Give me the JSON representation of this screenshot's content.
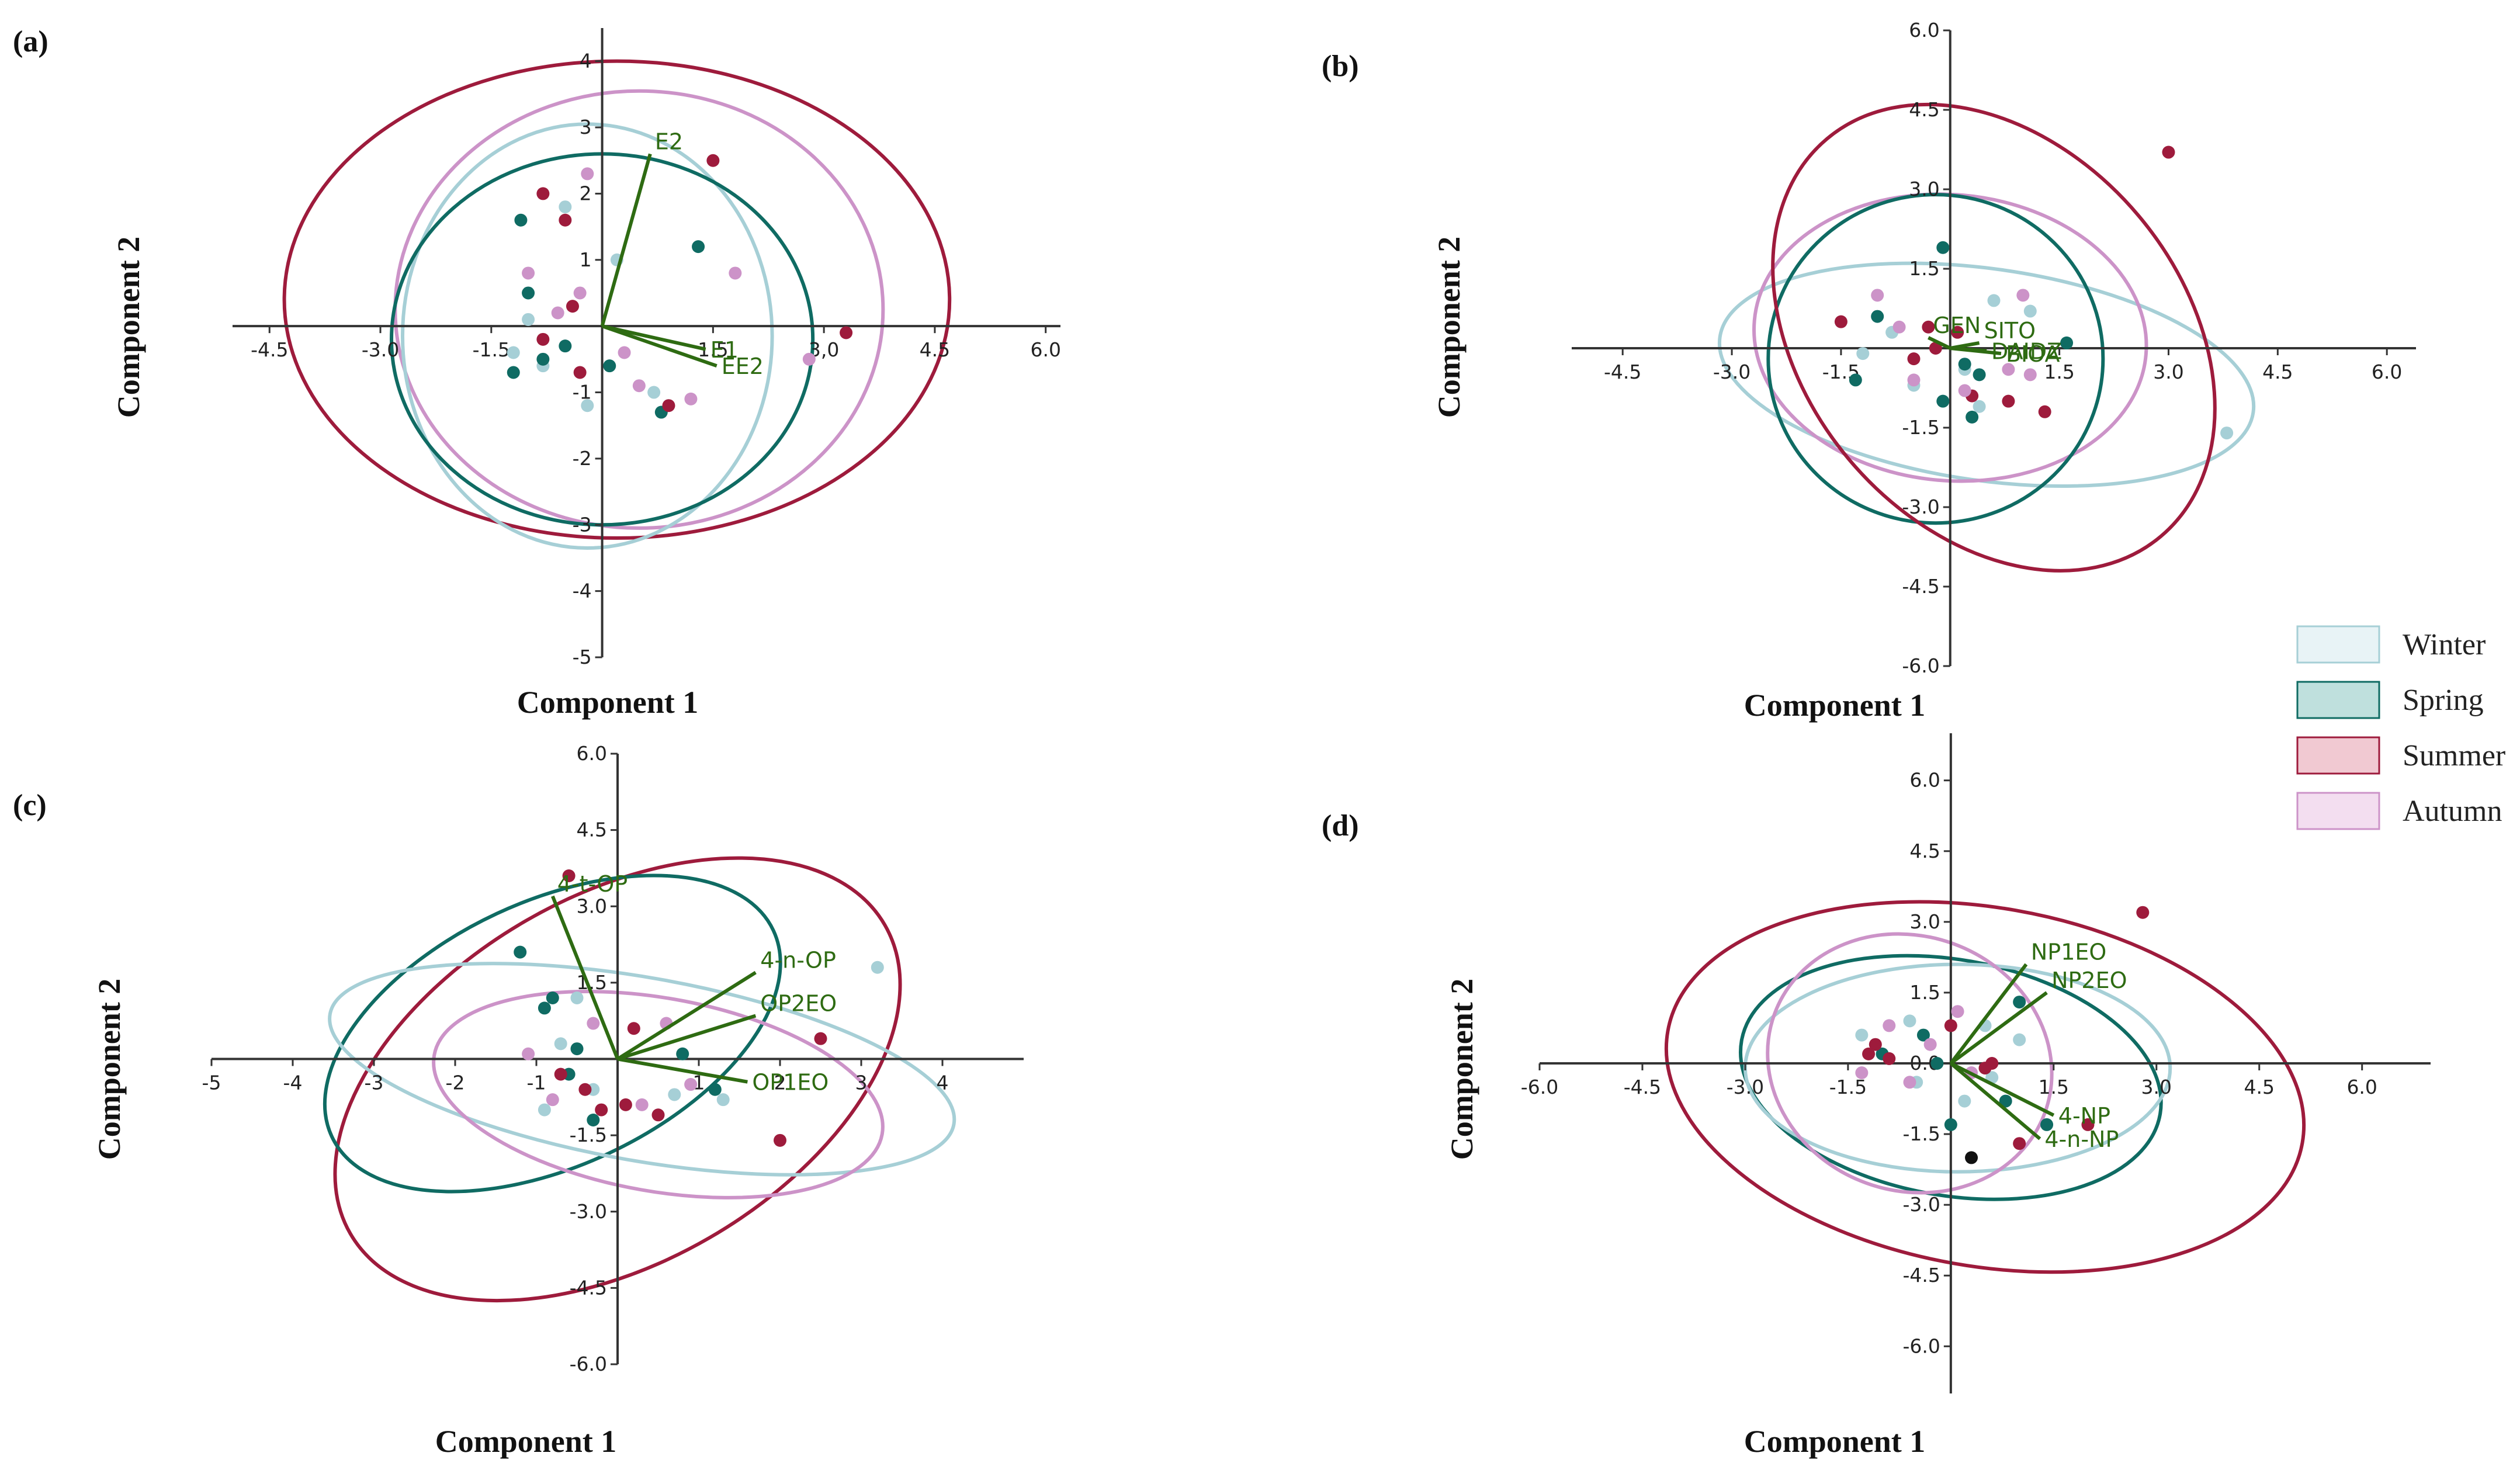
{
  "colors": {
    "Winter": "#a6cfd6",
    "Spring": "#0f6b63",
    "Summer": "#9e1b3c",
    "Autumn": "#cc93c8",
    "vector": "#2e6b12",
    "axis": "#333333",
    "legend_fill": {
      "Winter": "#e8f3f6",
      "Spring": "#bfe0dd",
      "Summer": "#f1c9d2",
      "Autumn": "#f3def0"
    }
  },
  "legend": {
    "placement": "right-middle",
    "items": [
      {
        "key": "Winter",
        "label": "Winter"
      },
      {
        "key": "Spring",
        "label": "Spring"
      },
      {
        "key": "Summer",
        "label": "Summer"
      },
      {
        "key": "Autumn",
        "label": "Autumn"
      }
    ]
  },
  "chart_data": [
    {
      "panel": "(a)",
      "type": "scatter",
      "xlabel": "Component 1",
      "ylabel": "Component 2",
      "xlim": [
        -5,
        6.2
      ],
      "ylim": [
        -5,
        4.5
      ],
      "xticks": [
        -4.5,
        -3.0,
        -1.5,
        1.5,
        3.0,
        4.5,
        6.0
      ],
      "xtick_labels": [
        "-4.5",
        "-3.0",
        "-1.5",
        "1.5",
        "3,0",
        "4.5",
        "6.0"
      ],
      "yticks": [
        -5,
        -4,
        -3,
        -2,
        -1,
        1,
        2,
        3,
        4
      ],
      "ytick_labels": [
        "-5",
        "-4",
        "-3",
        "-2",
        "-1",
        "1",
        "2",
        "3",
        "4"
      ],
      "vectors": [
        {
          "label": "E2",
          "x": 0.65,
          "y": 2.6
        },
        {
          "label": "E1",
          "x": 1.4,
          "y": -0.35
        },
        {
          "label": "EE2",
          "x": 1.55,
          "y": -0.6
        }
      ],
      "ellipses": [
        {
          "season": "Summer",
          "cx": 0.2,
          "cy": 0.4,
          "rx": 4.5,
          "ry": 3.6,
          "angle": 0
        },
        {
          "season": "Autumn",
          "cx": 0.5,
          "cy": 0.25,
          "rx": 3.3,
          "ry": 3.3,
          "angle": 0
        },
        {
          "season": "Winter",
          "cx": -0.2,
          "cy": -0.15,
          "rx": 2.5,
          "ry": 3.2,
          "angle": 0
        },
        {
          "season": "Spring",
          "cx": 0.0,
          "cy": -0.2,
          "rx": 2.85,
          "ry": 2.8,
          "angle": 0
        }
      ],
      "points": {
        "Winter": [
          [
            -1.2,
            -0.4
          ],
          [
            -0.8,
            -0.6
          ],
          [
            -0.2,
            -1.2
          ],
          [
            -0.5,
            1.8
          ],
          [
            0.2,
            1.0
          ],
          [
            0.7,
            -1.0
          ],
          [
            -1.0,
            0.1
          ]
        ],
        "Spring": [
          [
            -1.1,
            1.6
          ],
          [
            -1.0,
            0.5
          ],
          [
            -1.2,
            -0.7
          ],
          [
            -0.5,
            -0.3
          ],
          [
            1.3,
            1.2
          ],
          [
            0.8,
            -1.3
          ],
          [
            -0.8,
            -0.5
          ],
          [
            0.1,
            -0.6
          ]
        ],
        "Summer": [
          [
            -0.8,
            2.0
          ],
          [
            -0.5,
            1.6
          ],
          [
            1.5,
            2.5
          ],
          [
            3.3,
            -0.1
          ],
          [
            -0.8,
            -0.2
          ],
          [
            -0.3,
            -0.7
          ],
          [
            -0.4,
            0.3
          ],
          [
            0.9,
            -1.2
          ]
        ],
        "Autumn": [
          [
            -0.2,
            2.3
          ],
          [
            -1.0,
            0.8
          ],
          [
            -0.3,
            0.5
          ],
          [
            1.8,
            0.8
          ],
          [
            2.8,
            -0.5
          ],
          [
            0.5,
            -0.9
          ],
          [
            1.2,
            -1.1
          ],
          [
            -0.6,
            0.2
          ],
          [
            0.3,
            -0.4
          ]
        ]
      }
    },
    {
      "panel": "(b)",
      "type": "scatter",
      "xlabel": "Component 1",
      "ylabel": "Component 2",
      "xlim": [
        -5.2,
        6.4
      ],
      "ylim": [
        -6.0,
        6.0
      ],
      "xticks": [
        -4.5,
        -3.0,
        -1.5,
        1.5,
        3.0,
        4.5,
        6.0
      ],
      "xtick_labels": [
        "-4.5",
        "-3.0",
        "-1.5",
        "1.5",
        "3.0",
        "4.5",
        "6.0"
      ],
      "yticks": [
        -6.0,
        -4.5,
        -3.0,
        -1.5,
        1.5,
        3.0,
        4.5,
        6.0
      ],
      "ytick_labels": [
        "-6.0",
        "-4.5",
        "-3.0",
        "-1.5",
        "1.5",
        "3.0",
        "4.5",
        "6.0"
      ],
      "vectors": [
        {
          "label": "GEN",
          "x": -0.3,
          "y": 0.2
        },
        {
          "label": "SITO",
          "x": 0.4,
          "y": 0.1
        },
        {
          "label": "DAIDZ",
          "x": 0.5,
          "y": -0.05
        },
        {
          "label": "BIOA",
          "x": 0.7,
          "y": -0.1
        }
      ],
      "ellipses": [
        {
          "season": "Winter",
          "cx": 0.5,
          "cy": -0.5,
          "rx": 3.7,
          "ry": 2.0,
          "angle": -8
        },
        {
          "season": "Autumn",
          "cx": 0.0,
          "cy": 0.2,
          "rx": 2.7,
          "ry": 2.7,
          "angle": -5
        },
        {
          "season": "Spring",
          "cx": -0.2,
          "cy": -0.2,
          "rx": 2.3,
          "ry": 3.1,
          "angle": 0
        },
        {
          "season": "Summer",
          "cx": 0.6,
          "cy": 0.2,
          "rx": 2.6,
          "ry": 4.9,
          "angle": 40
        }
      ],
      "points": {
        "Winter": [
          [
            0.6,
            0.9
          ],
          [
            1.1,
            0.7
          ],
          [
            -0.8,
            0.3
          ],
          [
            -0.5,
            -0.7
          ],
          [
            0.2,
            -0.4
          ],
          [
            3.8,
            -1.6
          ],
          [
            -1.2,
            -0.1
          ],
          [
            0.4,
            -1.1
          ]
        ],
        "Spring": [
          [
            -0.1,
            1.9
          ],
          [
            -1.0,
            0.6
          ],
          [
            -1.3,
            -0.6
          ],
          [
            0.2,
            -0.3
          ],
          [
            0.3,
            -1.3
          ],
          [
            1.6,
            0.1
          ],
          [
            -0.1,
            -1.0
          ],
          [
            0.4,
            -0.5
          ]
        ],
        "Summer": [
          [
            -1.5,
            0.5
          ],
          [
            -0.3,
            0.4
          ],
          [
            0.8,
            -1.0
          ],
          [
            1.3,
            -1.2
          ],
          [
            3.0,
            3.7
          ],
          [
            -0.5,
            -0.2
          ],
          [
            0.1,
            0.3
          ],
          [
            -0.2,
            0.0
          ],
          [
            0.3,
            -0.9
          ]
        ],
        "Autumn": [
          [
            -1.0,
            1.0
          ],
          [
            1.0,
            1.0
          ],
          [
            1.1,
            -0.5
          ],
          [
            -0.5,
            -0.6
          ],
          [
            0.8,
            -0.4
          ],
          [
            -0.7,
            0.4
          ],
          [
            0.2,
            -0.8
          ]
        ]
      }
    },
    {
      "panel": "(c)",
      "type": "scatter",
      "xlabel": "Component 1",
      "ylabel": "Component 2",
      "xlim": [
        -5,
        5
      ],
      "ylim": [
        -6.0,
        6.0
      ],
      "xticks": [
        -5,
        -4,
        -3,
        -2,
        -1,
        1,
        2,
        3,
        4
      ],
      "xtick_labels": [
        "-5",
        "-4",
        "-3",
        "-2",
        "-1",
        "1",
        "2",
        "3",
        "4"
      ],
      "yticks": [
        -6.0,
        -4.5,
        -3.0,
        -1.5,
        1.5,
        3.0,
        4.5,
        6.0
      ],
      "ytick_labels": [
        "-6.0",
        "-4.5",
        "-3.0",
        "-1.5",
        "1.5",
        "3.0",
        "4.5",
        "6.0"
      ],
      "vectors": [
        {
          "label": "4-t-OP",
          "x": -0.8,
          "y": 3.2
        },
        {
          "label": "4-n-OP",
          "x": 1.7,
          "y": 1.7
        },
        {
          "label": "OP2EO",
          "x": 1.7,
          "y": 0.85
        },
        {
          "label": "OP1EO",
          "x": 1.6,
          "y": -0.45
        }
      ],
      "ellipses": [
        {
          "season": "Summer",
          "cx": 0.0,
          "cy": -0.4,
          "rx": 3.8,
          "ry": 3.6,
          "angle": 30
        },
        {
          "season": "Spring",
          "cx": -0.8,
          "cy": 0.5,
          "rx": 3.0,
          "ry": 2.6,
          "angle": 25
        },
        {
          "season": "Winter",
          "cx": 0.3,
          "cy": -0.2,
          "rx": 3.9,
          "ry": 1.8,
          "angle": -10
        },
        {
          "season": "Autumn",
          "cx": 0.5,
          "cy": -0.7,
          "rx": 2.8,
          "ry": 1.9,
          "angle": -10
        }
      ],
      "points": {
        "Winter": [
          [
            -0.5,
            1.2
          ],
          [
            -0.7,
            0.3
          ],
          [
            3.2,
            1.8
          ],
          [
            -0.3,
            -0.6
          ],
          [
            0.7,
            -0.7
          ],
          [
            1.3,
            -0.8
          ],
          [
            -0.9,
            -1.0
          ]
        ],
        "Spring": [
          [
            -1.2,
            2.1
          ],
          [
            -0.8,
            1.2
          ],
          [
            -0.9,
            1.0
          ],
          [
            -0.5,
            0.2
          ],
          [
            0.8,
            0.1
          ],
          [
            1.2,
            -0.6
          ],
          [
            -0.6,
            -0.3
          ],
          [
            -0.3,
            -1.2
          ]
        ],
        "Summer": [
          [
            -0.6,
            3.6
          ],
          [
            0.2,
            0.6
          ],
          [
            2.5,
            0.4
          ],
          [
            2.0,
            -1.6
          ],
          [
            -0.4,
            -0.6
          ],
          [
            0.1,
            -0.9
          ],
          [
            -0.2,
            -1.0
          ],
          [
            0.5,
            -1.1
          ],
          [
            -0.7,
            -0.3
          ]
        ],
        "Autumn": [
          [
            -0.3,
            0.7
          ],
          [
            0.6,
            0.7
          ],
          [
            0.9,
            -0.5
          ],
          [
            -0.8,
            -0.8
          ],
          [
            0.3,
            -0.9
          ],
          [
            -1.1,
            0.1
          ]
        ]
      }
    },
    {
      "panel": "(d)",
      "type": "scatter",
      "xlabel": "Component 1",
      "ylabel": "Component 2",
      "xlim": [
        -6.0,
        7.0
      ],
      "ylim": [
        -7.0,
        7.0
      ],
      "xticks": [
        -6.0,
        -4.5,
        -3.0,
        -1.5,
        1.5,
        3.0,
        4.5,
        6.0
      ],
      "xtick_labels": [
        "-6.0",
        "-4.5",
        "-3.0",
        "-1.5",
        "1.5",
        "3.0",
        "4.5",
        "6.0"
      ],
      "yticks": [
        -6.0,
        -4.5,
        -3.0,
        -1.5,
        0.0,
        1.5,
        3.0,
        4.5,
        6.0
      ],
      "ytick_labels": [
        "-6.0",
        "-4.5",
        "-3.0",
        "-1.5",
        "0.0",
        "1.5",
        "3.0",
        "4.5",
        "6.0"
      ],
      "vectors": [
        {
          "label": "NP1EO",
          "x": 1.1,
          "y": 2.1
        },
        {
          "label": "NP2EO",
          "x": 1.4,
          "y": 1.5
        },
        {
          "label": "4-NP",
          "x": 1.5,
          "y": -1.1
        },
        {
          "label": "4-n-NP",
          "x": 1.3,
          "y": -1.6
        }
      ],
      "ellipses": [
        {
          "season": "Summer",
          "cx": 0.5,
          "cy": -0.5,
          "rx": 4.7,
          "ry": 3.8,
          "angle": -10
        },
        {
          "season": "Spring",
          "cx": 0.0,
          "cy": -0.3,
          "rx": 3.1,
          "ry": 2.5,
          "angle": -10
        },
        {
          "season": "Winter",
          "cx": 0.1,
          "cy": -0.1,
          "rx": 3.1,
          "ry": 2.2,
          "angle": 0
        },
        {
          "season": "Autumn",
          "cx": -0.6,
          "cy": 0.0,
          "rx": 2.1,
          "ry": 2.7,
          "angle": -20
        }
      ],
      "points": {
        "Winter": [
          [
            -1.3,
            0.6
          ],
          [
            -0.6,
            0.9
          ],
          [
            0.5,
            0.8
          ],
          [
            1.0,
            0.5
          ],
          [
            0.2,
            -0.8
          ],
          [
            -0.5,
            -0.4
          ],
          [
            0.6,
            -0.3
          ]
        ],
        "Spring": [
          [
            -1.0,
            0.2
          ],
          [
            -0.4,
            0.6
          ],
          [
            1.0,
            1.3
          ],
          [
            0.8,
            -0.8
          ],
          [
            0.0,
            -1.3
          ],
          [
            1.4,
            -1.3
          ],
          [
            -0.2,
            0.0
          ]
        ],
        "Summer": [
          [
            -1.1,
            0.4
          ],
          [
            0.0,
            0.8
          ],
          [
            2.8,
            3.2
          ],
          [
            2.0,
            -1.3
          ],
          [
            1.0,
            -1.7
          ],
          [
            -0.9,
            0.1
          ],
          [
            0.5,
            -0.1
          ],
          [
            -1.2,
            0.2
          ],
          [
            0.6,
            0.0
          ]
        ],
        "Autumn": [
          [
            -0.9,
            0.8
          ],
          [
            -0.3,
            0.4
          ],
          [
            -0.6,
            -0.4
          ],
          [
            0.3,
            -0.2
          ],
          [
            -1.3,
            -0.2
          ],
          [
            0.1,
            1.1
          ]
        ],
        "Other": [
          [
            0.3,
            -2.0
          ]
        ]
      }
    }
  ]
}
